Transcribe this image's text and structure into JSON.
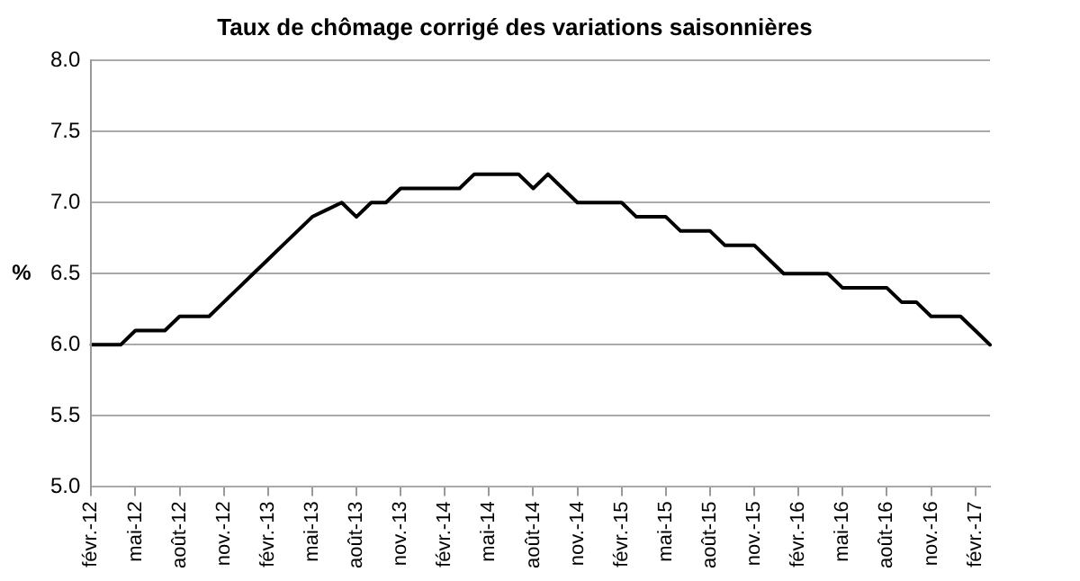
{
  "chart_data": {
    "type": "line",
    "title": "Taux de chômage corrigé des variations saisonnières",
    "ylabel": "%",
    "categories": [
      "févr.-12",
      null,
      null,
      "mai-12",
      null,
      null,
      "août-12",
      null,
      null,
      "nov.-12",
      null,
      null,
      "févr.-13",
      null,
      null,
      "mai-13",
      null,
      null,
      "août-13",
      null,
      null,
      "nov.-13",
      null,
      null,
      "févr.-14",
      null,
      null,
      "mai-14",
      null,
      null,
      "août-14",
      null,
      null,
      "nov.-14",
      null,
      null,
      "févr.-15",
      null,
      null,
      "mai-15",
      null,
      null,
      "août-15",
      null,
      null,
      "nov.-15",
      null,
      null,
      "févr.-16",
      null,
      null,
      "mai-16",
      null,
      null,
      "août-16",
      null,
      null,
      "nov.-16",
      null,
      null,
      "févr.-17",
      null
    ],
    "series": [
      {
        "color": "#000000",
        "values": [
          6.0,
          6.0,
          6.0,
          6.1,
          6.1,
          6.1,
          6.2,
          6.2,
          6.2,
          6.3,
          6.4,
          6.5,
          6.6,
          6.7,
          6.8,
          6.9,
          6.95,
          7.0,
          6.9,
          7.0,
          7.0,
          7.1,
          7.1,
          7.1,
          7.1,
          7.1,
          7.2,
          7.2,
          7.2,
          7.2,
          7.1,
          7.2,
          7.1,
          7.0,
          7.0,
          7.0,
          7.0,
          6.9,
          6.9,
          6.9,
          6.8,
          6.8,
          6.8,
          6.7,
          6.7,
          6.7,
          6.6,
          6.5,
          6.5,
          6.5,
          6.5,
          6.4,
          6.4,
          6.4,
          6.4,
          6.3,
          6.3,
          6.2,
          6.2,
          6.2,
          6.1,
          6.0
        ]
      }
    ],
    "ylim": [
      5,
      8
    ],
    "yticks": [
      {
        "value": 5,
        "label": "5.0"
      },
      {
        "value": 5.5,
        "label": "5.5"
      },
      {
        "value": 6,
        "label": "6.0"
      },
      {
        "value": 6.5,
        "label": "6.5"
      },
      {
        "value": 7,
        "label": "7.0"
      },
      {
        "value": 7.5,
        "label": "7.5"
      },
      {
        "value": 8,
        "label": "8.0"
      }
    ],
    "grid": "y",
    "legend": false,
    "marker": "none",
    "line_style": "solid"
  }
}
